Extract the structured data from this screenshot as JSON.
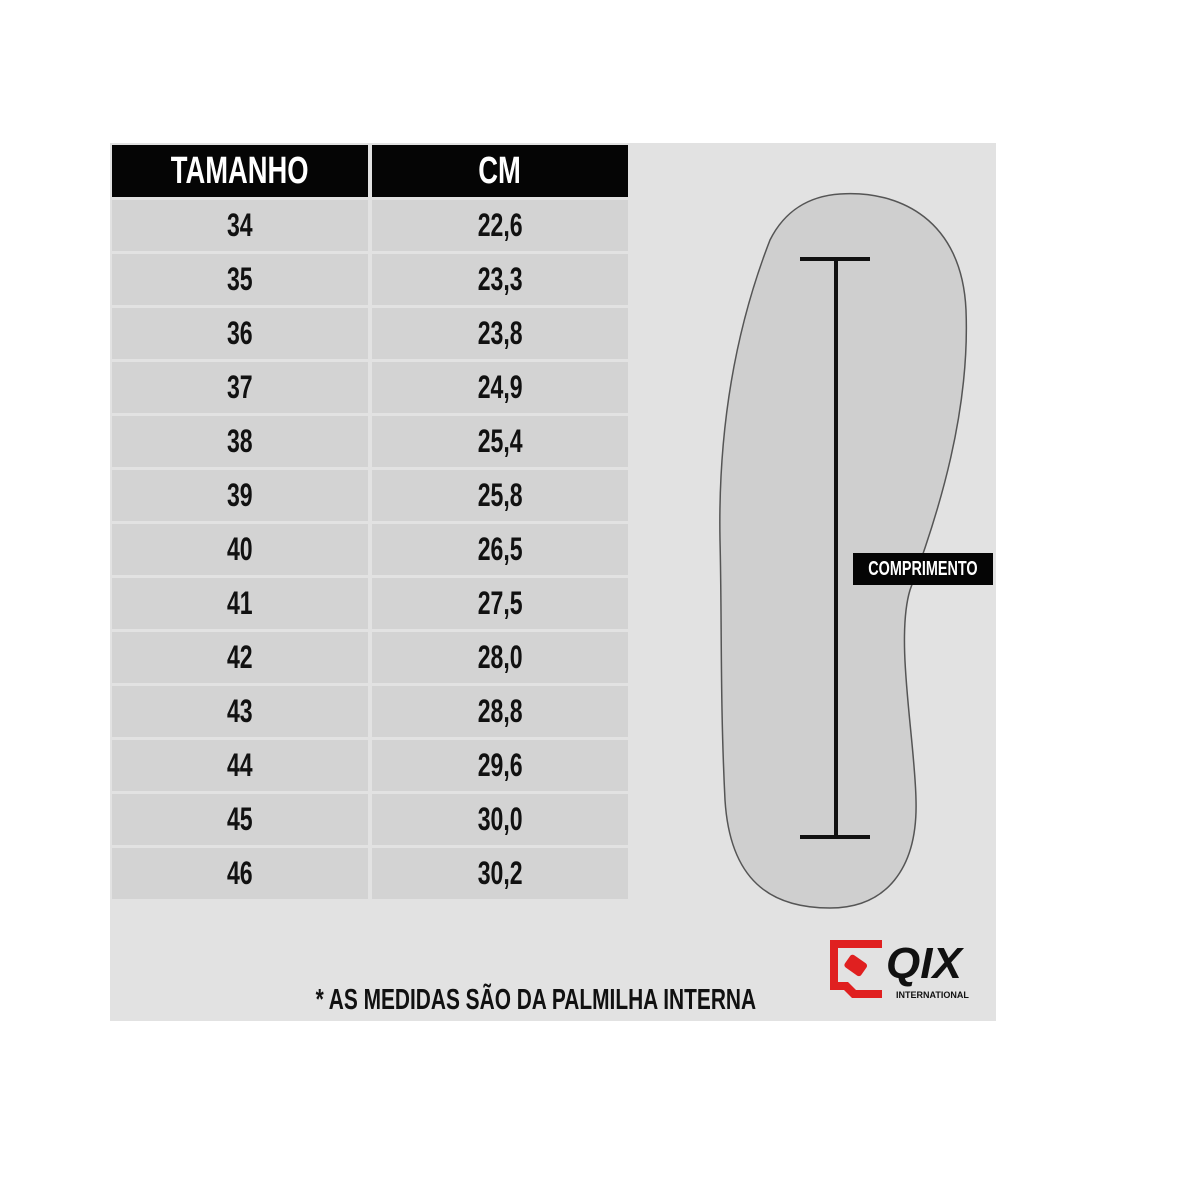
{
  "table": {
    "headers": [
      "TAMANHO",
      "CM"
    ],
    "rows": [
      [
        "34",
        "22,6"
      ],
      [
        "35",
        "23,3"
      ],
      [
        "36",
        "23,8"
      ],
      [
        "37",
        "24,9"
      ],
      [
        "38",
        "25,4"
      ],
      [
        "39",
        "25,8"
      ],
      [
        "40",
        "26,5"
      ],
      [
        "41",
        "27,5"
      ],
      [
        "42",
        "28,0"
      ],
      [
        "43",
        "28,8"
      ],
      [
        "44",
        "29,6"
      ],
      [
        "45",
        "30,0"
      ],
      [
        "46",
        "30,2"
      ]
    ]
  },
  "diagram": {
    "measure_label": "COMPRIMENTO"
  },
  "note": "* AS MEDIDAS SÃO DA PALMILHA INTERNA",
  "logo": {
    "name": "QIX",
    "sub": "INTERNATIONAL",
    "accent": "#e02020"
  }
}
